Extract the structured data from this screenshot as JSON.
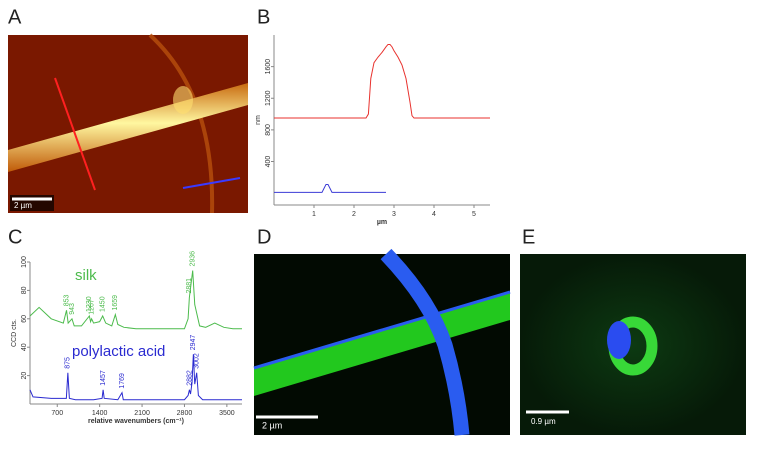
{
  "panels": {
    "A": {
      "label": "A",
      "scale_bar": "2 µm"
    },
    "B": {
      "label": "B"
    },
    "C": {
      "label": "C"
    },
    "D": {
      "label": "D",
      "scale_bar": "2 µm"
    },
    "E": {
      "label": "E",
      "scale_bar": "0.9 µm"
    }
  },
  "chart_data": [
    {
      "type": "line",
      "x_label": "µm",
      "y_label": "nm",
      "xlim": [
        0,
        5.4
      ],
      "ylim": [
        -150,
        2000
      ],
      "xticks": [
        1,
        2,
        3,
        4,
        5
      ],
      "yticks": [
        400,
        800,
        1200,
        1600
      ],
      "series": [
        {
          "color": "#e8322e",
          "x": [
            0,
            2.3,
            2.36,
            2.42,
            2.5,
            2.6,
            2.7,
            2.8,
            2.85,
            2.9,
            2.95,
            3.0,
            3.1,
            3.2,
            3.3,
            3.4,
            3.45,
            3.5,
            5.4
          ],
          "values": [
            950,
            950,
            1000,
            1450,
            1650,
            1720,
            1780,
            1850,
            1880,
            1880,
            1850,
            1800,
            1720,
            1620,
            1450,
            1150,
            980,
            950,
            950
          ]
        },
        {
          "color": "#3b3bd6",
          "x": [
            0,
            1.2,
            1.25,
            1.3,
            1.35,
            1.4,
            1.45,
            2.8
          ],
          "values": [
            10,
            10,
            60,
            110,
            110,
            60,
            10,
            10
          ]
        }
      ]
    },
    {
      "type": "line",
      "x_label": "relative wavenumbers (cm⁻¹)",
      "y_label": "CCD cts.",
      "xlim": [
        250,
        3750
      ],
      "ylim": [
        0,
        100
      ],
      "xticks": [
        700,
        1400,
        2100,
        2800,
        3500
      ],
      "yticks": [
        20,
        40,
        60,
        80,
        100
      ],
      "series": [
        {
          "name": "silk",
          "color": "#4cbb4c",
          "x": [
            250,
            400,
            600,
            800,
            853,
            880,
            943,
            980,
            1100,
            1230,
            1250,
            1267,
            1300,
            1400,
            1450,
            1500,
            1600,
            1659,
            1700,
            1800,
            2000,
            2500,
            2800,
            2860,
            2881,
            2910,
            2936,
            2970,
            3050,
            3150,
            3300,
            3450,
            3600,
            3750
          ],
          "values": [
            62,
            68,
            60,
            57,
            66,
            57,
            60,
            55,
            55,
            62,
            58,
            60,
            57,
            58,
            62,
            57,
            55,
            63,
            56,
            54,
            53,
            53,
            53,
            60,
            75,
            85,
            94,
            70,
            55,
            54,
            57,
            54,
            53,
            53
          ],
          "peak_labels": [
            853,
            943,
            1230,
            1267,
            1450,
            1659,
            2881,
            2936
          ]
        },
        {
          "name": "polylactic acid",
          "color": "#2a2ad0",
          "x": [
            250,
            300,
            600,
            850,
            875,
            900,
            1000,
            1300,
            1440,
            1457,
            1475,
            1700,
            1769,
            1790,
            2000,
            2800,
            2860,
            2882,
            2900,
            2925,
            2947,
            2970,
            3002,
            3030,
            3100,
            3750
          ],
          "values": [
            10,
            5,
            4,
            4,
            22,
            4,
            3,
            3,
            4,
            10,
            4,
            3,
            8,
            3,
            3,
            3,
            6,
            10,
            7,
            15,
            35,
            14,
            22,
            6,
            3,
            3
          ],
          "peak_labels": [
            875,
            1457,
            1769,
            2882,
            2947,
            3002
          ]
        }
      ]
    }
  ]
}
